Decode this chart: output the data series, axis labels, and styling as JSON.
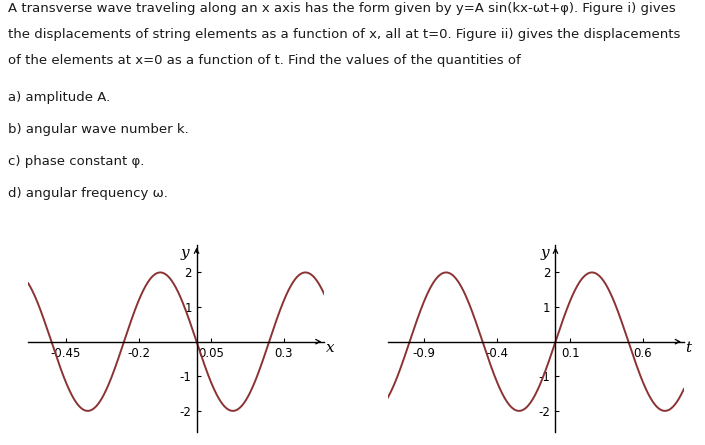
{
  "text_lines": [
    "A transverse wave traveling along an x axis has the form given by y=A sin(kx-ωt+φ). Figure i) gives",
    "the displacements of string elements as a function of x, all at t=0. Figure ii) gives the displacements",
    "of the elements at x=0 as a function of t. Find the values of the quantities of"
  ],
  "items": [
    "a) amplitude A.",
    "b) angular wave number k.",
    "c) phase constant φ.",
    "d) angular frequency ω."
  ],
  "fig1": {
    "A": 2.0,
    "k": 12.566,
    "phi": 3.1416,
    "xlabel": "x",
    "ylabel": "y",
    "xlim": [
      -0.58,
      0.44
    ],
    "ylim": [
      -2.6,
      2.8
    ],
    "xticks": [
      -0.45,
      -0.2,
      0.05,
      0.3
    ],
    "yticks": [
      -2,
      -1,
      1,
      2
    ],
    "color": "#8B3333"
  },
  "fig2": {
    "A": 2.0,
    "omega": 6.2832,
    "phi": 3.1416,
    "xlabel": "t",
    "ylabel": "y",
    "xlim": [
      -1.15,
      0.88
    ],
    "ylim": [
      -2.6,
      2.8
    ],
    "xticks": [
      -0.9,
      -0.4,
      0.1,
      0.6
    ],
    "yticks": [
      -2,
      -1,
      1,
      2
    ],
    "color": "#8B3333"
  },
  "background_color": "#FFFFFF",
  "text_color": "#1a1a1a",
  "font_size_text": 9.5,
  "font_size_label": 10,
  "font_size_tick": 8.5,
  "font_size_axis_label": 11
}
